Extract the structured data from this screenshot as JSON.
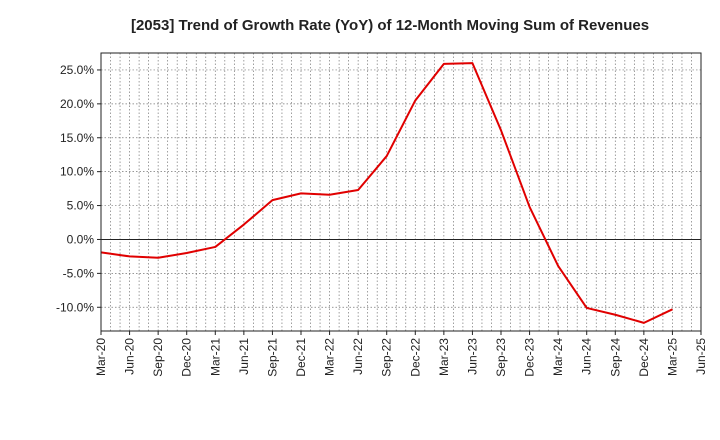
{
  "chart_data": {
    "type": "line",
    "title": "[2053]  Trend of Growth Rate (YoY) of 12-Month Moving Sum of Revenues",
    "xlabel": "",
    "ylabel": "",
    "x_ticks": [
      "Mar-20",
      "Jun-20",
      "Sep-20",
      "Dec-20",
      "Mar-21",
      "Jun-21",
      "Sep-21",
      "Dec-21",
      "Mar-22",
      "Jun-22",
      "Sep-22",
      "Dec-22",
      "Mar-23",
      "Jun-23",
      "Sep-23",
      "Dec-23",
      "Mar-24",
      "Jun-24",
      "Sep-24",
      "Dec-24",
      "Mar-25",
      "Jun-25"
    ],
    "y_ticks": [
      25.0,
      20.0,
      15.0,
      10.0,
      5.0,
      0.0,
      -5.0,
      -10.0
    ],
    "y_tick_labels": [
      "25.0%",
      "20.0%",
      "15.0%",
      "10.0%",
      "5.0%",
      "0.0%",
      "-5.0%",
      "-10.0%"
    ],
    "ylim": [
      -13.5,
      27.5
    ],
    "grid": true,
    "series": [
      {
        "color": "#e00000",
        "x": [
          "Mar-20",
          "Jun-20",
          "Sep-20",
          "Dec-20",
          "Mar-21",
          "Jun-21",
          "Sep-21",
          "Dec-21",
          "Mar-22",
          "Jun-22",
          "Sep-22",
          "Dec-22",
          "Mar-23",
          "Jun-23",
          "Sep-23",
          "Dec-23",
          "Mar-24",
          "Jun-24",
          "Sep-24",
          "Dec-24",
          "Mar-25"
        ],
        "values": [
          -1.9,
          -2.5,
          -2.7,
          -2.0,
          -1.1,
          2.2,
          5.8,
          6.8,
          6.6,
          7.3,
          12.3,
          20.5,
          25.9,
          26.0,
          16.1,
          4.8,
          -3.9,
          -10.1,
          -11.1,
          -12.3,
          -10.3
        ]
      }
    ]
  }
}
